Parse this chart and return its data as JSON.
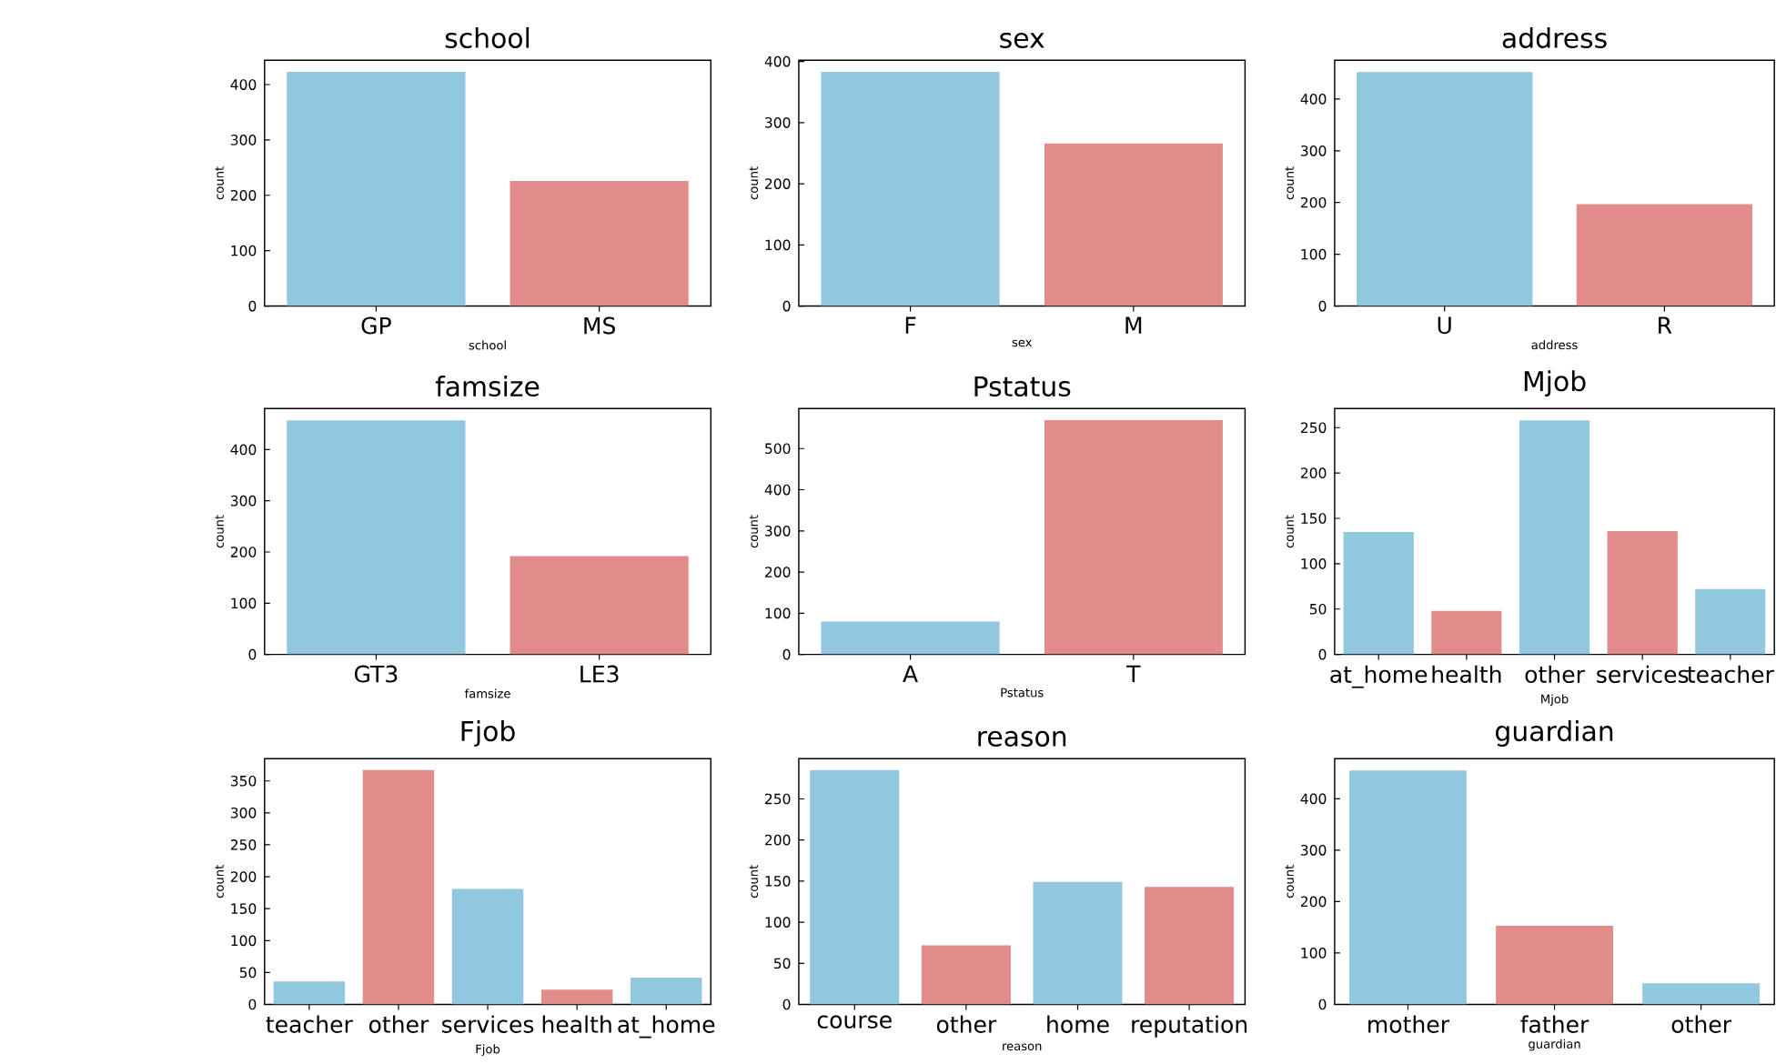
{
  "chart_data": [
    {
      "type": "bar",
      "title": "school",
      "xlabel": "school",
      "ylabel": "count",
      "categories": [
        "GP",
        "MS"
      ],
      "values": [
        423,
        226
      ],
      "colors": [
        "#92c8df",
        "#e28b8b"
      ],
      "ylim": [
        0,
        444
      ],
      "yticks": [
        0,
        100,
        200,
        300,
        400
      ]
    },
    {
      "type": "bar",
      "title": "sex",
      "xlabel": "sex",
      "ylabel": "count",
      "categories": [
        "F",
        "M"
      ],
      "values": [
        383,
        266
      ],
      "colors": [
        "#92c8df",
        "#e28b8b"
      ],
      "ylim": [
        0,
        402
      ],
      "yticks": [
        0,
        100,
        200,
        300,
        400
      ]
    },
    {
      "type": "bar",
      "title": "address",
      "xlabel": "address",
      "ylabel": "count",
      "categories": [
        "U",
        "R"
      ],
      "values": [
        452,
        197
      ],
      "colors": [
        "#92c8df",
        "#e28b8b"
      ],
      "ylim": [
        0,
        475
      ],
      "yticks": [
        0,
        100,
        200,
        300,
        400
      ]
    },
    {
      "type": "bar",
      "title": "famsize",
      "xlabel": "famsize",
      "ylabel": "count",
      "categories": [
        "GT3",
        "LE3"
      ],
      "values": [
        457,
        192
      ],
      "colors": [
        "#92c8df",
        "#e28b8b"
      ],
      "ylim": [
        0,
        480
      ],
      "yticks": [
        0,
        100,
        200,
        300,
        400
      ]
    },
    {
      "type": "bar",
      "title": "Pstatus",
      "xlabel": "Pstatus",
      "ylabel": "count",
      "categories": [
        "A",
        "T"
      ],
      "values": [
        80,
        569
      ],
      "colors": [
        "#92c8df",
        "#e28b8b"
      ],
      "ylim": [
        0,
        597
      ],
      "yticks": [
        0,
        100,
        200,
        300,
        400,
        500
      ]
    },
    {
      "type": "bar",
      "title": "Mjob",
      "xlabel": "Mjob",
      "ylabel": "count",
      "categories": [
        "at_home",
        "health",
        "other",
        "services",
        "teacher"
      ],
      "values": [
        135,
        48,
        258,
        136,
        72
      ],
      "colors": [
        "#92c8df",
        "#e28b8b",
        "#92c8df",
        "#e28b8b",
        "#92c8df"
      ],
      "ylim": [
        0,
        271
      ],
      "yticks": [
        0,
        50,
        100,
        150,
        200,
        250
      ]
    },
    {
      "type": "bar",
      "title": "Fjob",
      "xlabel": "Fjob",
      "ylabel": "count",
      "categories": [
        "teacher",
        "other",
        "services",
        "health",
        "at_home"
      ],
      "values": [
        36,
        367,
        181,
        23,
        42
      ],
      "colors": [
        "#92c8df",
        "#e28b8b",
        "#92c8df",
        "#e28b8b",
        "#92c8df"
      ],
      "ylim": [
        0,
        385
      ],
      "yticks": [
        0,
        50,
        100,
        150,
        200,
        250,
        300,
        350
      ]
    },
    {
      "type": "bar",
      "title": "reason",
      "xlabel": "reason",
      "ylabel": "count",
      "categories": [
        "course",
        "other",
        "home",
        "reputation"
      ],
      "values": [
        285,
        72,
        149,
        143
      ],
      "colors": [
        "#92c8df",
        "#e28b8b",
        "#92c8df",
        "#e28b8b"
      ],
      "ylim": [
        0,
        299
      ],
      "yticks": [
        0,
        50,
        100,
        150,
        200,
        250
      ]
    },
    {
      "type": "bar",
      "title": "guardian",
      "xlabel": "guardian",
      "ylabel": "count",
      "categories": [
        "mother",
        "father",
        "other"
      ],
      "values": [
        455,
        153,
        41
      ],
      "colors": [
        "#92c8df",
        "#e28b8b",
        "#92c8df"
      ],
      "ylim": [
        0,
        478
      ],
      "yticks": [
        0,
        100,
        200,
        300,
        400
      ]
    }
  ]
}
